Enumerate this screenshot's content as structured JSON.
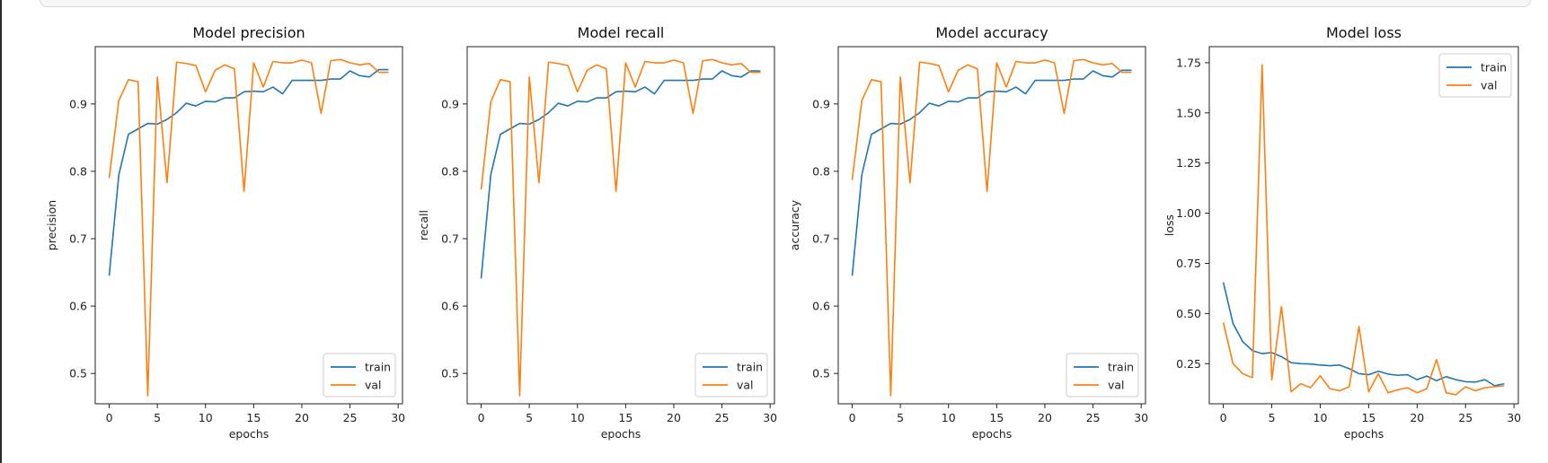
{
  "colors": {
    "train": "#1f77b4",
    "val": "#ff7f0e"
  },
  "chart_data": [
    {
      "type": "line",
      "title": "Model precision",
      "xlabel": "epochs",
      "ylabel": "precision",
      "xlim": [
        -1.45,
        30.45
      ],
      "ylim": [
        0.455,
        0.985
      ],
      "xticks": [
        0,
        5,
        10,
        15,
        20,
        25,
        30
      ],
      "xtick_labels": [
        "0",
        "5",
        "10",
        "15",
        "20",
        "25",
        "30"
      ],
      "yticks": [
        0.5,
        0.6,
        0.7,
        0.8,
        0.9
      ],
      "ytick_labels": [
        "0.5",
        "0.6",
        "0.7",
        "0.8",
        "0.9"
      ],
      "legend_loc": "lower right",
      "series": [
        {
          "name": "train",
          "x": [
            0,
            1,
            2,
            3,
            4,
            5,
            6,
            7,
            8,
            9,
            10,
            11,
            12,
            13,
            14,
            15,
            16,
            17,
            18,
            19,
            20,
            21,
            22,
            23,
            24,
            25,
            26,
            27,
            28,
            29
          ],
          "values": [
            0.645,
            0.795,
            0.855,
            0.863,
            0.871,
            0.87,
            0.877,
            0.887,
            0.901,
            0.897,
            0.904,
            0.903,
            0.909,
            0.909,
            0.918,
            0.919,
            0.918,
            0.925,
            0.915,
            0.935,
            0.935,
            0.935,
            0.935,
            0.937,
            0.937,
            0.949,
            0.942,
            0.94,
            0.951,
            0.951
          ]
        },
        {
          "name": "val",
          "x": [
            0,
            1,
            2,
            3,
            4,
            5,
            6,
            7,
            8,
            9,
            10,
            11,
            12,
            13,
            14,
            15,
            16,
            17,
            18,
            19,
            20,
            21,
            22,
            23,
            24,
            25,
            26,
            27,
            28,
            29
          ],
          "values": [
            0.79,
            0.905,
            0.936,
            0.933,
            0.467,
            0.94,
            0.783,
            0.962,
            0.96,
            0.957,
            0.918,
            0.95,
            0.958,
            0.952,
            0.77,
            0.961,
            0.925,
            0.963,
            0.961,
            0.961,
            0.965,
            0.961,
            0.886,
            0.964,
            0.966,
            0.961,
            0.958,
            0.96,
            0.947,
            0.947
          ]
        }
      ]
    },
    {
      "type": "line",
      "title": "Model recall",
      "xlabel": "epochs",
      "ylabel": "recall",
      "xlim": [
        -1.45,
        30.45
      ],
      "ylim": [
        0.455,
        0.985
      ],
      "xticks": [
        0,
        5,
        10,
        15,
        20,
        25,
        30
      ],
      "xtick_labels": [
        "0",
        "5",
        "10",
        "15",
        "20",
        "25",
        "30"
      ],
      "yticks": [
        0.5,
        0.6,
        0.7,
        0.8,
        0.9
      ],
      "ytick_labels": [
        "0.5",
        "0.6",
        "0.7",
        "0.8",
        "0.9"
      ],
      "legend_loc": "lower right",
      "series": [
        {
          "name": "train",
          "x": [
            0,
            1,
            2,
            3,
            4,
            5,
            6,
            7,
            8,
            9,
            10,
            11,
            12,
            13,
            14,
            15,
            16,
            17,
            18,
            19,
            20,
            21,
            22,
            23,
            24,
            25,
            26,
            27,
            28,
            29
          ],
          "values": [
            0.641,
            0.795,
            0.855,
            0.863,
            0.871,
            0.87,
            0.877,
            0.887,
            0.901,
            0.897,
            0.904,
            0.903,
            0.909,
            0.909,
            0.918,
            0.919,
            0.918,
            0.925,
            0.915,
            0.935,
            0.935,
            0.935,
            0.935,
            0.937,
            0.937,
            0.949,
            0.942,
            0.94,
            0.949,
            0.949
          ]
        },
        {
          "name": "val",
          "x": [
            0,
            1,
            2,
            3,
            4,
            5,
            6,
            7,
            8,
            9,
            10,
            11,
            12,
            13,
            14,
            15,
            16,
            17,
            18,
            19,
            20,
            21,
            22,
            23,
            24,
            25,
            26,
            27,
            28,
            29
          ],
          "values": [
            0.773,
            0.903,
            0.936,
            0.933,
            0.467,
            0.94,
            0.783,
            0.962,
            0.96,
            0.957,
            0.918,
            0.95,
            0.958,
            0.952,
            0.77,
            0.961,
            0.925,
            0.963,
            0.961,
            0.961,
            0.965,
            0.961,
            0.886,
            0.964,
            0.966,
            0.961,
            0.958,
            0.96,
            0.947,
            0.947
          ]
        }
      ]
    },
    {
      "type": "line",
      "title": "Model accuracy",
      "xlabel": "epochs",
      "ylabel": "accuracy",
      "xlim": [
        -1.45,
        30.45
      ],
      "ylim": [
        0.455,
        0.985
      ],
      "xticks": [
        0,
        5,
        10,
        15,
        20,
        25,
        30
      ],
      "xtick_labels": [
        "0",
        "5",
        "10",
        "15",
        "20",
        "25",
        "30"
      ],
      "yticks": [
        0.5,
        0.6,
        0.7,
        0.8,
        0.9
      ],
      "ytick_labels": [
        "0.5",
        "0.6",
        "0.7",
        "0.8",
        "0.9"
      ],
      "legend_loc": "lower right",
      "series": [
        {
          "name": "train",
          "x": [
            0,
            1,
            2,
            3,
            4,
            5,
            6,
            7,
            8,
            9,
            10,
            11,
            12,
            13,
            14,
            15,
            16,
            17,
            18,
            19,
            20,
            21,
            22,
            23,
            24,
            25,
            26,
            27,
            28,
            29
          ],
          "values": [
            0.645,
            0.795,
            0.855,
            0.863,
            0.871,
            0.87,
            0.877,
            0.887,
            0.901,
            0.897,
            0.904,
            0.903,
            0.909,
            0.909,
            0.918,
            0.919,
            0.918,
            0.925,
            0.915,
            0.935,
            0.935,
            0.935,
            0.935,
            0.937,
            0.937,
            0.949,
            0.942,
            0.94,
            0.95,
            0.95
          ]
        },
        {
          "name": "val",
          "x": [
            0,
            1,
            2,
            3,
            4,
            5,
            6,
            7,
            8,
            9,
            10,
            11,
            12,
            13,
            14,
            15,
            16,
            17,
            18,
            19,
            20,
            21,
            22,
            23,
            24,
            25,
            26,
            27,
            28,
            29
          ],
          "values": [
            0.787,
            0.905,
            0.936,
            0.933,
            0.467,
            0.94,
            0.783,
            0.962,
            0.96,
            0.957,
            0.918,
            0.95,
            0.958,
            0.952,
            0.77,
            0.961,
            0.925,
            0.963,
            0.961,
            0.961,
            0.965,
            0.961,
            0.886,
            0.964,
            0.966,
            0.961,
            0.958,
            0.96,
            0.947,
            0.947
          ]
        }
      ]
    },
    {
      "type": "line",
      "title": "Model loss",
      "xlabel": "epochs",
      "ylabel": "loss",
      "xlim": [
        -1.45,
        30.45
      ],
      "ylim": [
        0.05,
        1.83
      ],
      "xticks": [
        0,
        5,
        10,
        15,
        20,
        25,
        30
      ],
      "xtick_labels": [
        "0",
        "5",
        "10",
        "15",
        "20",
        "25",
        "30"
      ],
      "yticks": [
        0.25,
        0.5,
        0.75,
        1.0,
        1.25,
        1.5,
        1.75
      ],
      "ytick_labels": [
        "0.25",
        "0.50",
        "0.75",
        "1.00",
        "1.25",
        "1.50",
        "1.75"
      ],
      "legend_loc": "upper right",
      "series": [
        {
          "name": "train",
          "x": [
            0,
            1,
            2,
            3,
            4,
            5,
            6,
            7,
            8,
            9,
            10,
            11,
            12,
            13,
            14,
            15,
            16,
            17,
            18,
            19,
            20,
            21,
            22,
            23,
            24,
            25,
            26,
            27,
            28,
            29
          ],
          "values": [
            0.655,
            0.45,
            0.36,
            0.315,
            0.3,
            0.305,
            0.285,
            0.255,
            0.25,
            0.248,
            0.243,
            0.24,
            0.243,
            0.225,
            0.2,
            0.195,
            0.212,
            0.198,
            0.192,
            0.195,
            0.17,
            0.188,
            0.165,
            0.185,
            0.17,
            0.16,
            0.158,
            0.17,
            0.14,
            0.15
          ]
        },
        {
          "name": "val",
          "x": [
            0,
            1,
            2,
            3,
            4,
            5,
            6,
            7,
            8,
            9,
            10,
            11,
            12,
            13,
            14,
            15,
            16,
            17,
            18,
            19,
            20,
            21,
            22,
            23,
            24,
            25,
            26,
            27,
            28,
            29
          ],
          "values": [
            0.455,
            0.25,
            0.2,
            0.18,
            1.74,
            0.17,
            0.535,
            0.11,
            0.15,
            0.13,
            0.19,
            0.125,
            0.115,
            0.135,
            0.435,
            0.11,
            0.2,
            0.105,
            0.12,
            0.13,
            0.105,
            0.125,
            0.27,
            0.105,
            0.095,
            0.135,
            0.115,
            0.13,
            0.135,
            0.14
          ]
        }
      ]
    }
  ]
}
